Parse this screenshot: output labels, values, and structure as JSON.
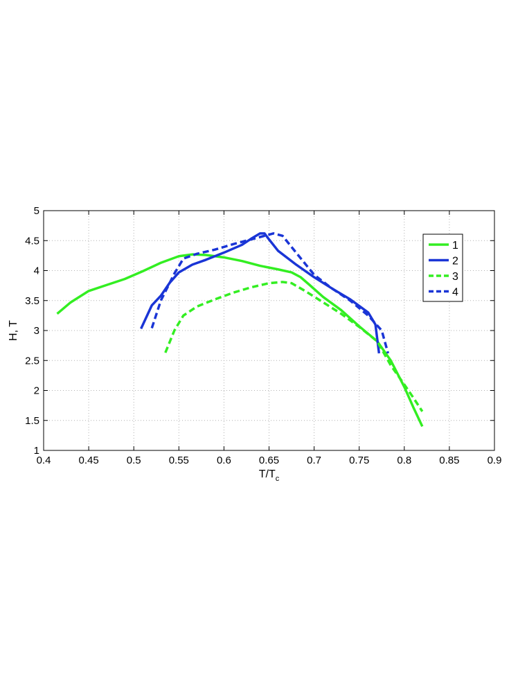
{
  "chart_data": {
    "type": "line",
    "title": "",
    "xlabel_main": "T/T",
    "xlabel_sub": "c",
    "ylabel": "H, T",
    "xlim": [
      0.4,
      0.9
    ],
    "ylim": [
      1,
      5
    ],
    "grid": true,
    "grid_style": "dotted",
    "legend_position": "right",
    "x_ticks": [
      0.4,
      0.45,
      0.5,
      0.55,
      0.6,
      0.65,
      0.7,
      0.75,
      0.8,
      0.85,
      0.9
    ],
    "x_tick_labels": [
      "0.4",
      "0.45",
      "0.5",
      "0.55",
      "0.6",
      "0.65",
      "0.7",
      "0.75",
      "0.8",
      "0.85",
      "0.9"
    ],
    "y_ticks": [
      1,
      1.5,
      2,
      2.5,
      3,
      3.5,
      4,
      4.5,
      5
    ],
    "y_tick_labels": [
      "1",
      "1.5",
      "2",
      "2.5",
      "3",
      "3.5",
      "4",
      "4.5",
      "5"
    ],
    "series": [
      {
        "name": "1",
        "color": "#33ee22",
        "style": "solid",
        "points": [
          [
            0.415,
            3.28
          ],
          [
            0.43,
            3.47
          ],
          [
            0.45,
            3.66
          ],
          [
            0.47,
            3.76
          ],
          [
            0.49,
            3.86
          ],
          [
            0.51,
            3.99
          ],
          [
            0.53,
            4.13
          ],
          [
            0.55,
            4.24
          ],
          [
            0.565,
            4.27
          ],
          [
            0.58,
            4.26
          ],
          [
            0.6,
            4.22
          ],
          [
            0.62,
            4.16
          ],
          [
            0.64,
            4.08
          ],
          [
            0.66,
            4.02
          ],
          [
            0.675,
            3.97
          ],
          [
            0.685,
            3.89
          ],
          [
            0.695,
            3.76
          ],
          [
            0.71,
            3.56
          ],
          [
            0.73,
            3.34
          ],
          [
            0.75,
            3.07
          ],
          [
            0.77,
            2.82
          ],
          [
            0.785,
            2.5
          ],
          [
            0.8,
            2.06
          ],
          [
            0.81,
            1.72
          ],
          [
            0.82,
            1.4
          ]
        ]
      },
      {
        "name": "2",
        "color": "#1a35d6",
        "style": "solid",
        "points": [
          [
            0.508,
            3.03
          ],
          [
            0.52,
            3.42
          ],
          [
            0.53,
            3.58
          ],
          [
            0.54,
            3.8
          ],
          [
            0.55,
            3.97
          ],
          [
            0.565,
            4.1
          ],
          [
            0.58,
            4.18
          ],
          [
            0.6,
            4.3
          ],
          [
            0.62,
            4.43
          ],
          [
            0.63,
            4.53
          ],
          [
            0.64,
            4.62
          ],
          [
            0.645,
            4.62
          ],
          [
            0.65,
            4.52
          ],
          [
            0.66,
            4.33
          ],
          [
            0.68,
            4.1
          ],
          [
            0.7,
            3.89
          ],
          [
            0.72,
            3.7
          ],
          [
            0.74,
            3.52
          ],
          [
            0.76,
            3.3
          ],
          [
            0.768,
            3.1
          ],
          [
            0.772,
            2.62
          ]
        ]
      },
      {
        "name": "3",
        "color": "#33ee22",
        "style": "dashed",
        "points": [
          [
            0.535,
            2.63
          ],
          [
            0.545,
            3.0
          ],
          [
            0.555,
            3.25
          ],
          [
            0.57,
            3.4
          ],
          [
            0.59,
            3.52
          ],
          [
            0.61,
            3.63
          ],
          [
            0.63,
            3.72
          ],
          [
            0.65,
            3.79
          ],
          [
            0.665,
            3.81
          ],
          [
            0.675,
            3.79
          ],
          [
            0.69,
            3.66
          ],
          [
            0.71,
            3.47
          ],
          [
            0.73,
            3.28
          ],
          [
            0.75,
            3.06
          ],
          [
            0.77,
            2.82
          ],
          [
            0.785,
            2.42
          ],
          [
            0.8,
            2.1
          ],
          [
            0.81,
            1.88
          ],
          [
            0.82,
            1.65
          ]
        ]
      },
      {
        "name": "4",
        "color": "#1a35d6",
        "style": "dashed",
        "points": [
          [
            0.52,
            3.04
          ],
          [
            0.53,
            3.5
          ],
          [
            0.545,
            3.95
          ],
          [
            0.555,
            4.2
          ],
          [
            0.57,
            4.28
          ],
          [
            0.59,
            4.35
          ],
          [
            0.61,
            4.44
          ],
          [
            0.63,
            4.52
          ],
          [
            0.645,
            4.58
          ],
          [
            0.655,
            4.62
          ],
          [
            0.665,
            4.58
          ],
          [
            0.68,
            4.3
          ],
          [
            0.7,
            3.93
          ],
          [
            0.72,
            3.7
          ],
          [
            0.74,
            3.5
          ],
          [
            0.76,
            3.25
          ],
          [
            0.775,
            3.0
          ],
          [
            0.782,
            2.62
          ]
        ]
      }
    ]
  }
}
